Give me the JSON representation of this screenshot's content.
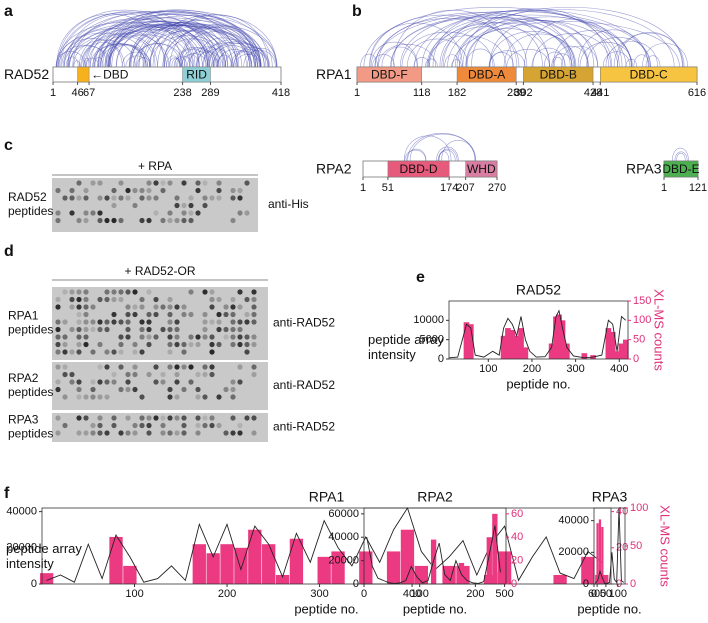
{
  "panels": {
    "a": "a",
    "b": "b",
    "c": "c",
    "d": "d",
    "e": "e",
    "f": "f"
  },
  "domain_maps": [
    {
      "name": "RAD52",
      "ticks": [
        1,
        46,
        67,
        238,
        289,
        418
      ],
      "domains": [
        {
          "label": "←DBD",
          "start": 46,
          "end": 67,
          "color": "#f5b21d"
        },
        {
          "label": "RID",
          "start": 238,
          "end": 289,
          "color": "#8fd0d6"
        }
      ]
    },
    {
      "name": "RPA1",
      "ticks": [
        1,
        118,
        182,
        289,
        302,
        428,
        441,
        616
      ],
      "domains": [
        {
          "label": "DBD-F",
          "start": 1,
          "end": 118,
          "color": "#f39a86"
        },
        {
          "label": "DBD-A",
          "start": 182,
          "end": 289,
          "color": "#ee8a3a"
        },
        {
          "label": "DBD-B",
          "start": 302,
          "end": 428,
          "color": "#d6a432"
        },
        {
          "label": "DBD-C",
          "start": 441,
          "end": 616,
          "color": "#f6c440"
        }
      ]
    },
    {
      "name": "RPA2",
      "ticks": [
        1,
        51,
        174,
        207,
        270
      ],
      "domains": [
        {
          "label": "DBD-D",
          "start": 51,
          "end": 174,
          "color": "#e65a7c"
        },
        {
          "label": "WHD",
          "start": 207,
          "end": 270,
          "color": "#d97ea2"
        }
      ]
    },
    {
      "name": "RPA3",
      "ticks": [
        1,
        121
      ],
      "domains": [
        {
          "label": "DBD-E",
          "start": 1,
          "end": 121,
          "color": "#4caf50"
        }
      ]
    }
  ],
  "blots": {
    "c": {
      "condition": "+ RPA",
      "rows": [
        {
          "label": "RAD52 peptides",
          "antibody": "anti-His"
        }
      ]
    },
    "d": {
      "condition": "+ RAD52-OR",
      "rows": [
        {
          "label": "RPA1 peptides",
          "antibody": "anti-RAD52"
        },
        {
          "label": "RPA2 peptides",
          "antibody": "anti-RAD52"
        },
        {
          "label": "RPA3 peptides",
          "antibody": "anti-RAD52"
        }
      ]
    }
  },
  "chart_data": [
    {
      "type": "line",
      "title": "RAD52",
      "xlabel": "peptide no.",
      "ylabel": "peptide array intensity",
      "y2label": "XL-MS counts",
      "x": [
        10,
        30,
        50,
        60,
        70,
        90,
        110,
        125,
        135,
        145,
        155,
        165,
        175,
        185,
        195,
        210,
        230,
        245,
        255,
        262,
        270,
        280,
        295,
        320,
        340,
        360,
        375,
        385,
        395,
        405,
        415
      ],
      "series": [
        {
          "color": "#222222",
          "values": [
            300,
            500,
            9000,
            8000,
            1000,
            500,
            2000,
            1000,
            8000,
            10500,
            9000,
            6000,
            11000,
            5000,
            2000,
            500,
            600,
            3000,
            11000,
            12500,
            8000,
            3000,
            800,
            300,
            500,
            1000,
            10000,
            9000,
            2000,
            11000,
            10000
          ]
        },
        {
          "color": "#ec3a82",
          "type": "bar",
          "axis": "y2",
          "values": [
            0,
            0,
            95,
            90,
            0,
            0,
            0,
            0,
            60,
            80,
            75,
            60,
            80,
            30,
            0,
            0,
            0,
            40,
            110,
            115,
            100,
            40,
            0,
            15,
            10,
            0,
            80,
            70,
            20,
            40,
            50
          ]
        }
      ],
      "xlim": [
        10,
        420
      ],
      "xticks": [
        100,
        200,
        300,
        400
      ],
      "ylim": [
        0,
        15000
      ],
      "yticks": [
        0,
        5000,
        10000
      ],
      "y2lim": [
        0,
        150
      ],
      "y2ticks": [
        0,
        50,
        100,
        150
      ]
    },
    {
      "type": "line",
      "title": "RPA1",
      "xlabel": "peptide no.",
      "ylabel": "peptide array intensity",
      "x": [
        5,
        20,
        35,
        50,
        65,
        80,
        95,
        110,
        125,
        140,
        155,
        170,
        185,
        200,
        215,
        230,
        245,
        260,
        275,
        290,
        305,
        320,
        335,
        350,
        365,
        380,
        395,
        410,
        425,
        440,
        455,
        470,
        485,
        500,
        515,
        530,
        545,
        560,
        575,
        590,
        605
      ],
      "series": [
        {
          "color": "#222222",
          "values": [
            2000,
            5000,
            1000,
            22000,
            3000,
            27000,
            15000,
            1000,
            3000,
            10000,
            2000,
            33000,
            15000,
            33000,
            8000,
            32000,
            22000,
            4000,
            28000,
            12000,
            35000,
            20000,
            10000,
            26000,
            12000,
            30000,
            42000,
            18000,
            8000,
            15000,
            24000,
            5000,
            22000,
            32000,
            2000,
            15000,
            26000,
            6000,
            3000,
            18000,
            12000
          ]
        },
        {
          "color": "#ec3a82",
          "type": "bar",
          "axis": "y2",
          "values": [
            6,
            0,
            0,
            0,
            0,
            26,
            10,
            0,
            0,
            0,
            0,
            22,
            17,
            22,
            20,
            30,
            22,
            5,
            25,
            0,
            15,
            18,
            0,
            18,
            0,
            18,
            30,
            10,
            0,
            10,
            10,
            0,
            5,
            18,
            0,
            0,
            0,
            5,
            0,
            15,
            5
          ]
        }
      ],
      "xlim": [
        0,
        615
      ],
      "xticks": [
        100,
        200,
        300,
        400,
        500,
        600
      ],
      "ylim": [
        0,
        42000
      ],
      "yticks": [
        0,
        20000,
        40000
      ],
      "y2lim": [
        0,
        42
      ],
      "y2ticks": [
        0,
        20,
        40
      ]
    },
    {
      "type": "line",
      "title": "RPA2",
      "xlabel": "peptide no.",
      "x": [
        5,
        15,
        25,
        35,
        45,
        55,
        65,
        75,
        85,
        95,
        105,
        115,
        125,
        135,
        145,
        155,
        165,
        175,
        185,
        195,
        205,
        215,
        225,
        235,
        245
      ],
      "series": [
        {
          "color": "#222222",
          "values": [
            40000,
            15000,
            5000,
            3000,
            1000,
            500,
            1000,
            3000,
            15000,
            6000,
            1000,
            3000,
            20000,
            35000,
            8000,
            3000,
            20000,
            8000,
            3000,
            1000,
            500,
            2000,
            25000,
            50000,
            10000
          ]
        },
        {
          "color": "#ec3a82",
          "type": "bar",
          "axis": "y2",
          "values": [
            0,
            0,
            0,
            0,
            0,
            0,
            0,
            0,
            18,
            10,
            0,
            0,
            38,
            0,
            0,
            0,
            0,
            18,
            0,
            0,
            0,
            0,
            40,
            60,
            10
          ]
        }
      ],
      "xlim": [
        0,
        255
      ],
      "xticks": [
        0,
        100,
        200
      ],
      "ylim": [
        0,
        65000
      ],
      "yticks": [
        0,
        20000,
        40000,
        60000
      ],
      "y2lim": [
        0,
        65
      ],
      "y2ticks": [
        0,
        20,
        40,
        60
      ]
    },
    {
      "type": "line",
      "title": "RPA3",
      "xlabel": "peptide no.",
      "y2label": "XL-MS counts",
      "x": [
        5,
        15,
        25,
        35,
        45,
        55,
        65,
        75,
        85,
        95,
        105,
        115,
        125
      ],
      "series": [
        {
          "color": "#222222",
          "values": [
            500,
            2000,
            8000,
            4000,
            500,
            300,
            1000,
            20000,
            3000,
            1000,
            48000,
            2000,
            1000
          ]
        },
        {
          "color": "#ec3a82",
          "type": "bar",
          "axis": "y2",
          "values": [
            0,
            80,
            85,
            75,
            0,
            0,
            0,
            0,
            0,
            0,
            0,
            0,
            0
          ]
        }
      ],
      "xlim": [
        0,
        130
      ],
      "xticks": [
        0,
        50,
        100
      ],
      "ylim": [
        0,
        48000
      ],
      "yticks": [
        0,
        20000,
        40000
      ],
      "y2lim": [
        0,
        100
      ],
      "y2ticks": [
        0,
        50,
        100
      ]
    }
  ]
}
